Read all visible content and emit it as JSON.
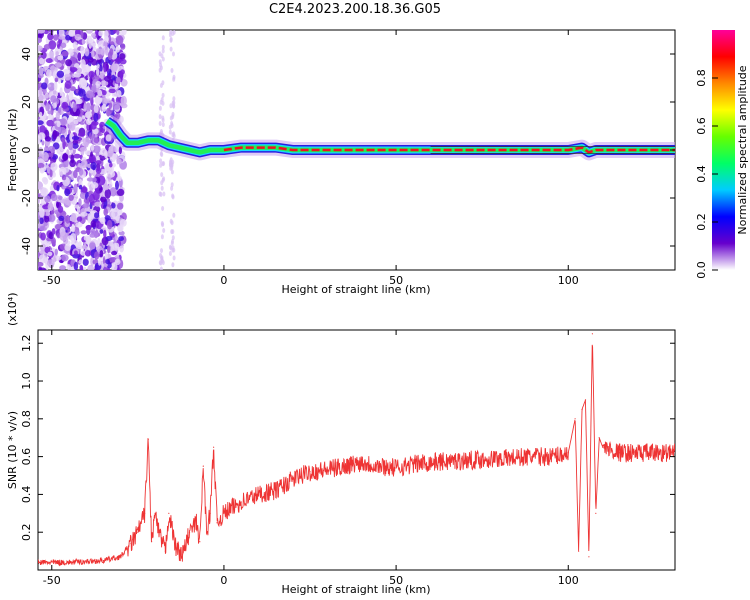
{
  "title": "C2E4.2023.200.18.36.G05",
  "chart_data": [
    {
      "type": "heatmap",
      "xlabel": "Height of straight line (km)",
      "ylabel": "Frequency (Hz)",
      "xlim": [
        -54,
        131
      ],
      "ylim": [
        -50,
        50
      ],
      "xticks": [
        -50,
        0,
        50,
        100
      ],
      "yticks": [
        -40,
        -20,
        0,
        20,
        40
      ],
      "colorbar": {
        "label": "Normalized spectral amplitude",
        "range": [
          0,
          1
        ],
        "ticks": [
          "0.0",
          "0.2",
          "0.4",
          "0.6",
          "0.8"
        ],
        "colormap": [
          "#ffffff",
          "#6600cc",
          "#0000ff",
          "#00ccff",
          "#00ff66",
          "#66ff00",
          "#ffff00",
          "#ff8800",
          "#ff0000",
          "#ff0099"
        ]
      },
      "ridge": {
        "x": [
          -34,
          -32,
          -30,
          -28,
          -25,
          -22,
          -19,
          -16,
          -13,
          -10,
          -7,
          -4,
          0,
          5,
          10,
          15,
          20,
          30,
          40,
          50,
          60,
          80,
          100,
          104,
          106,
          108,
          131
        ],
        "y": [
          12,
          10,
          6,
          3,
          3,
          4,
          4,
          2,
          1,
          0,
          -1,
          0,
          0,
          1,
          1,
          1,
          0,
          0,
          0,
          0,
          0,
          0,
          0,
          1,
          -1,
          0,
          0
        ]
      },
      "noise_region": {
        "x_range": [
          -54,
          -29
        ],
        "y_range": [
          -50,
          50
        ]
      }
    },
    {
      "type": "line",
      "xlabel": "Height of straight line (km)",
      "ylabel": "SNR (10 * v/v)",
      "y_multiplier": "(x10⁴)",
      "xlim": [
        -54,
        131
      ],
      "ylim": [
        0,
        1.27
      ],
      "xticks": [
        -50,
        0,
        50,
        100
      ],
      "yticks": [
        "0.2",
        "0.4",
        "0.6",
        "0.8",
        "1.0",
        "1.2"
      ],
      "series": [
        {
          "color": "#ee3333",
          "x": [
            -54,
            -45,
            -35,
            -30,
            -27,
            -25,
            -23,
            -22,
            -21,
            -20,
            -19,
            -18,
            -17,
            -16,
            -14,
            -12,
            -10,
            -8,
            -7,
            -6,
            -5,
            -4,
            -3,
            -2,
            0,
            5,
            10,
            15,
            20,
            25,
            30,
            35,
            40,
            45,
            50,
            55,
            60,
            70,
            80,
            90,
            95,
            100,
            102,
            103,
            104,
            105,
            106,
            107,
            108,
            109,
            110,
            115,
            120,
            125,
            131
          ],
          "y": [
            0.04,
            0.04,
            0.05,
            0.07,
            0.14,
            0.2,
            0.3,
            0.69,
            0.15,
            0.3,
            0.2,
            0.15,
            0.1,
            0.3,
            0.12,
            0.08,
            0.2,
            0.25,
            0.15,
            0.55,
            0.2,
            0.3,
            0.65,
            0.25,
            0.3,
            0.36,
            0.4,
            0.42,
            0.48,
            0.52,
            0.53,
            0.55,
            0.57,
            0.55,
            0.54,
            0.56,
            0.57,
            0.58,
            0.59,
            0.6,
            0.6,
            0.62,
            0.8,
            0.1,
            0.85,
            0.9,
            0.07,
            1.25,
            0.3,
            0.7,
            0.65,
            0.62,
            0.62,
            0.62,
            0.62
          ]
        }
      ]
    }
  ]
}
